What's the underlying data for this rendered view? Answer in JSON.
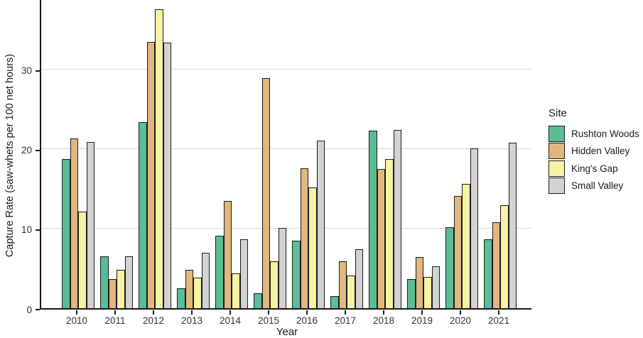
{
  "chart_data": {
    "type": "bar",
    "title": "",
    "xlabel": "Year",
    "ylabel": "Capture Rate (saw-whets per 100 net hours)",
    "legend_title": "Site",
    "legend_position": "right",
    "grid": true,
    "ylim": [
      0,
      38.9
    ],
    "yticks": [
      0,
      10,
      20,
      30
    ],
    "categories": [
      "2010",
      "2011",
      "2012",
      "2013",
      "2014",
      "2015",
      "2016",
      "2017",
      "2018",
      "2019",
      "2020",
      "2021"
    ],
    "series": [
      {
        "name": "Rushton Woods",
        "color": "#5abd96",
        "values": [
          18.7,
          6.5,
          23.4,
          2.5,
          9.1,
          1.9,
          8.5,
          1.5,
          22.3,
          3.7,
          10.2,
          8.7
        ]
      },
      {
        "name": "Hidden Valley",
        "color": "#e2b77e",
        "values": [
          21.3,
          3.7,
          33.5,
          4.8,
          13.5,
          28.9,
          17.6,
          5.9,
          17.5,
          6.4,
          14.1,
          10.8
        ]
      },
      {
        "name": "King's Gap",
        "color": "#f7f3a4",
        "values": [
          12.1,
          4.8,
          37.6,
          3.8,
          4.4,
          5.9,
          15.2,
          4.1,
          18.7,
          3.9,
          15.6,
          12.9
        ]
      },
      {
        "name": "Small Valley",
        "color": "#d2d2d2",
        "values": [
          20.9,
          6.5,
          33.4,
          7.0,
          8.7,
          10.1,
          21.1,
          7.4,
          22.4,
          5.3,
          20.1,
          20.8
        ]
      }
    ],
    "colors": {
      "axis": "#181818",
      "gridline": "#d8d8d8",
      "bar_outline": "#1a1a1a",
      "tick_text": "#333333",
      "title_text": "#1a1a1a"
    }
  }
}
